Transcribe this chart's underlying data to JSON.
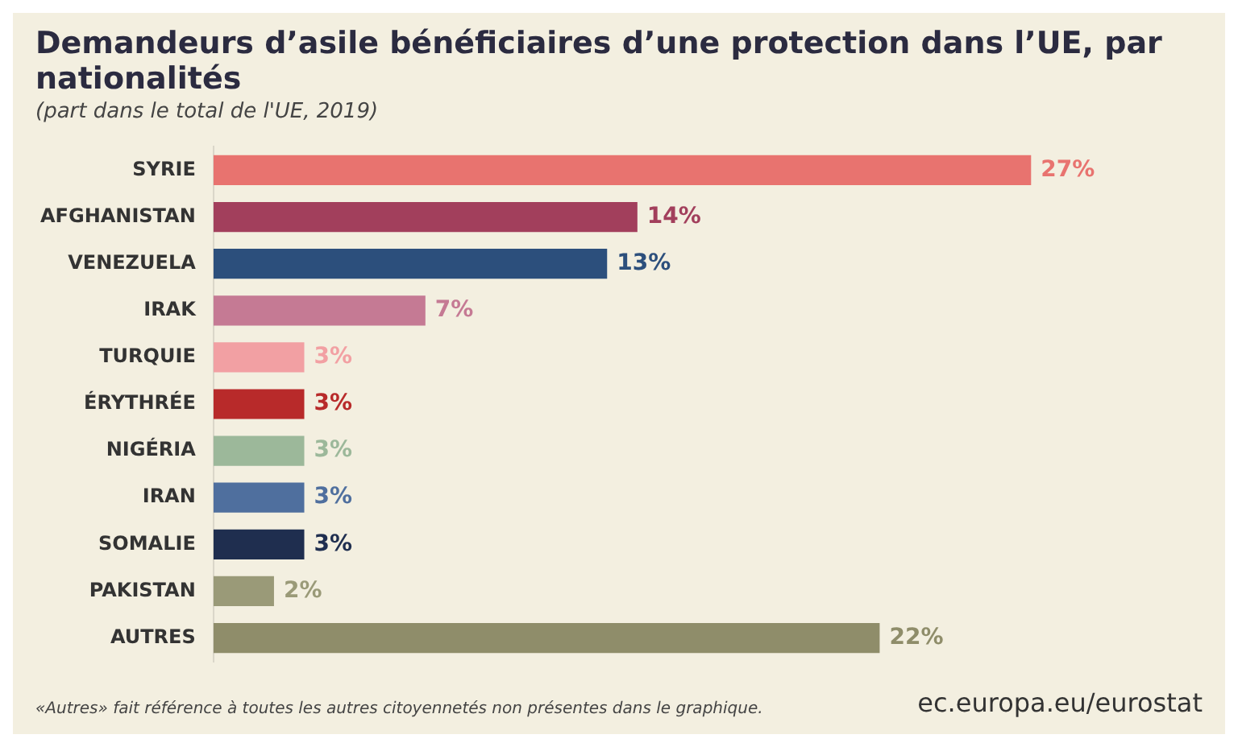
{
  "chart_data": {
    "type": "bar",
    "orientation": "horizontal",
    "title": "Demandeurs d’asile bénéficiaires d’une protection dans l’UE, par nationalités",
    "subtitle": "(part dans le total de l'UE, 2019)",
    "categories": [
      "SYRIE",
      "AFGHANISTAN",
      "VENEZUELA",
      "IRAK",
      "TURQUIE",
      "ÉRYTHRÉE",
      "NIGÉRIA",
      "IRAN",
      "SOMALIE",
      "PAKISTAN",
      "AUTRES"
    ],
    "values": [
      27,
      14,
      13,
      7,
      3,
      3,
      3,
      3,
      3,
      2,
      22
    ],
    "value_labels": [
      "27%",
      "14%",
      "13%",
      "7%",
      "3%",
      "3%",
      "3%",
      "3%",
      "3%",
      "2%",
      "22%"
    ],
    "colors": [
      "#e8736f",
      "#a23f5c",
      "#2c4f7c",
      "#c57a94",
      "#f2a0a3",
      "#b82a2a",
      "#9cb89a",
      "#4f6f9e",
      "#1f2e4f",
      "#9a9a78",
      "#8f8d6a"
    ],
    "tick_labels": "y",
    "grid": false,
    "legend": false,
    "annotations": [
      "«Autres» fait référence à toutes les autres citoyennetés non présentes dans le graphique.",
      "ec.europa.eu/eurostat"
    ]
  }
}
